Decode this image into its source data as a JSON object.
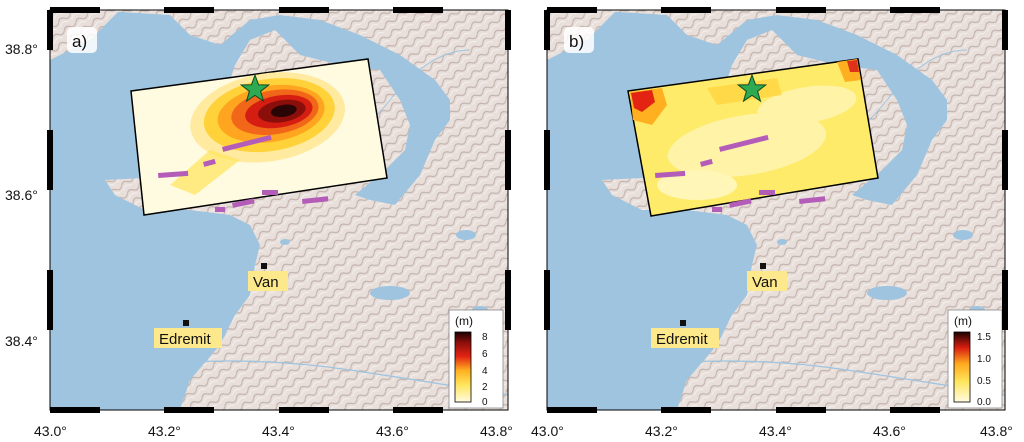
{
  "figure": {
    "y_tick_labels": [
      "38.8°",
      "38.6°",
      "38.4°"
    ],
    "x_tick_labels": [
      "43.0°",
      "43.2°",
      "43.4°",
      "43.6°",
      "43.8°"
    ],
    "colors": {
      "lake": "#9fc4e0",
      "land": "#e6dcd8",
      "slip_low": "#fffbe0",
      "slip_mid": "#ffd23a",
      "slip_high": "#e32412",
      "slip_max": "#2a0505",
      "fault_trace": "#b35db8",
      "epicenter_star": "#2eaa52",
      "label_box": "#fde98c"
    },
    "icons": [
      "epicenter-star-icon",
      "city-marker-icon"
    ]
  },
  "panels": [
    {
      "tag": "a)",
      "cities": [
        {
          "name": "Van"
        },
        {
          "name": "Edremit"
        }
      ],
      "colorbar": {
        "unit": "(m)",
        "ticks": [
          "8",
          "6",
          "4",
          "2",
          "0"
        ],
        "range": [
          0,
          8
        ]
      }
    },
    {
      "tag": "b)",
      "cities": [
        {
          "name": "Van"
        },
        {
          "name": "Edremit"
        }
      ],
      "colorbar": {
        "unit": "(m)",
        "ticks": [
          "1.5",
          "1.0",
          "0.5",
          "0.0"
        ],
        "range": [
          0,
          1.5
        ]
      }
    }
  ]
}
